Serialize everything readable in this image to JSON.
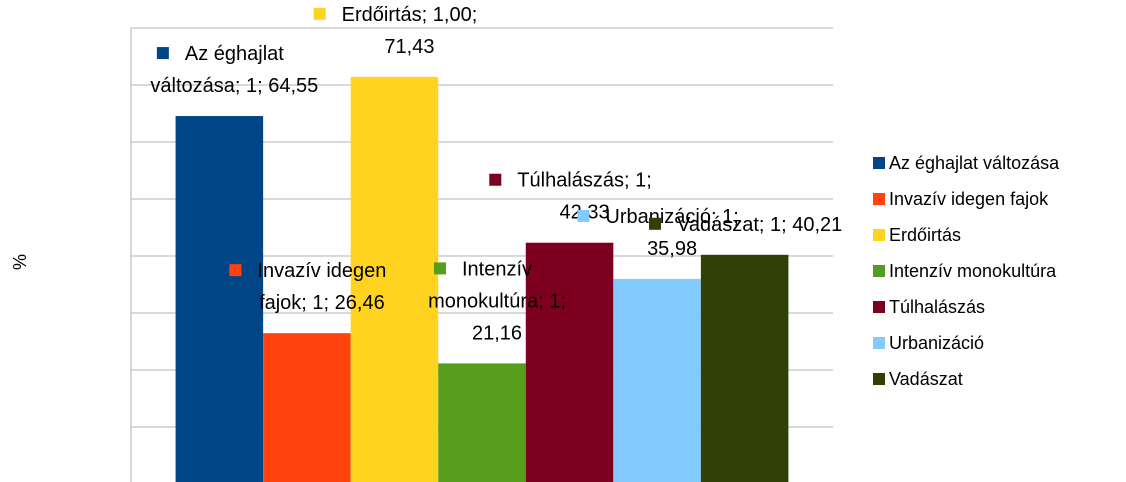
{
  "chart_data": {
    "type": "bar",
    "y_label": "%",
    "categories": [
      null
    ],
    "ylim": [
      0,
      80
    ],
    "yticks": [
      0,
      10,
      20,
      30,
      40,
      50,
      60,
      70,
      80
    ],
    "grid": true,
    "legend": "right",
    "series": [
      {
        "name": "Az éghajlat változása",
        "color": "#004586",
        "values": [
          64.55
        ],
        "value_labels": [
          "Az éghajlat változása; 1; 64,55"
        ]
      },
      {
        "name": "Invazív idegen fajok",
        "color": "#ff420e",
        "values": [
          26.46
        ],
        "value_labels": [
          "Invazív idegen fajok; 1; 26,46"
        ]
      },
      {
        "name": "Erdőirtás",
        "color": "#ffd320",
        "values": [
          71.43
        ],
        "value_labels": [
          "Erdőirtás; 1,00; 71,43"
        ]
      },
      {
        "name": "Intenzív monokultúra",
        "color": "#579d1c",
        "values": [
          21.16
        ],
        "value_labels": [
          "Intenzív monokultúra; 1; 21,16"
        ]
      },
      {
        "name": "Túlhalászás",
        "color": "#7e0021",
        "values": [
          42.33
        ],
        "value_labels": [
          "Túlhalászás; 1; 42,33"
        ]
      },
      {
        "name": "Urbanizáció",
        "color": "#83caff",
        "values": [
          35.98
        ],
        "value_labels": [
          "Urbanizáció; 1; 35,98"
        ]
      },
      {
        "name": "Vadászat",
        "color": "#314004",
        "values": [
          40.21
        ],
        "value_labels": [
          "Vadászat; 1; 40,21"
        ]
      }
    ]
  }
}
